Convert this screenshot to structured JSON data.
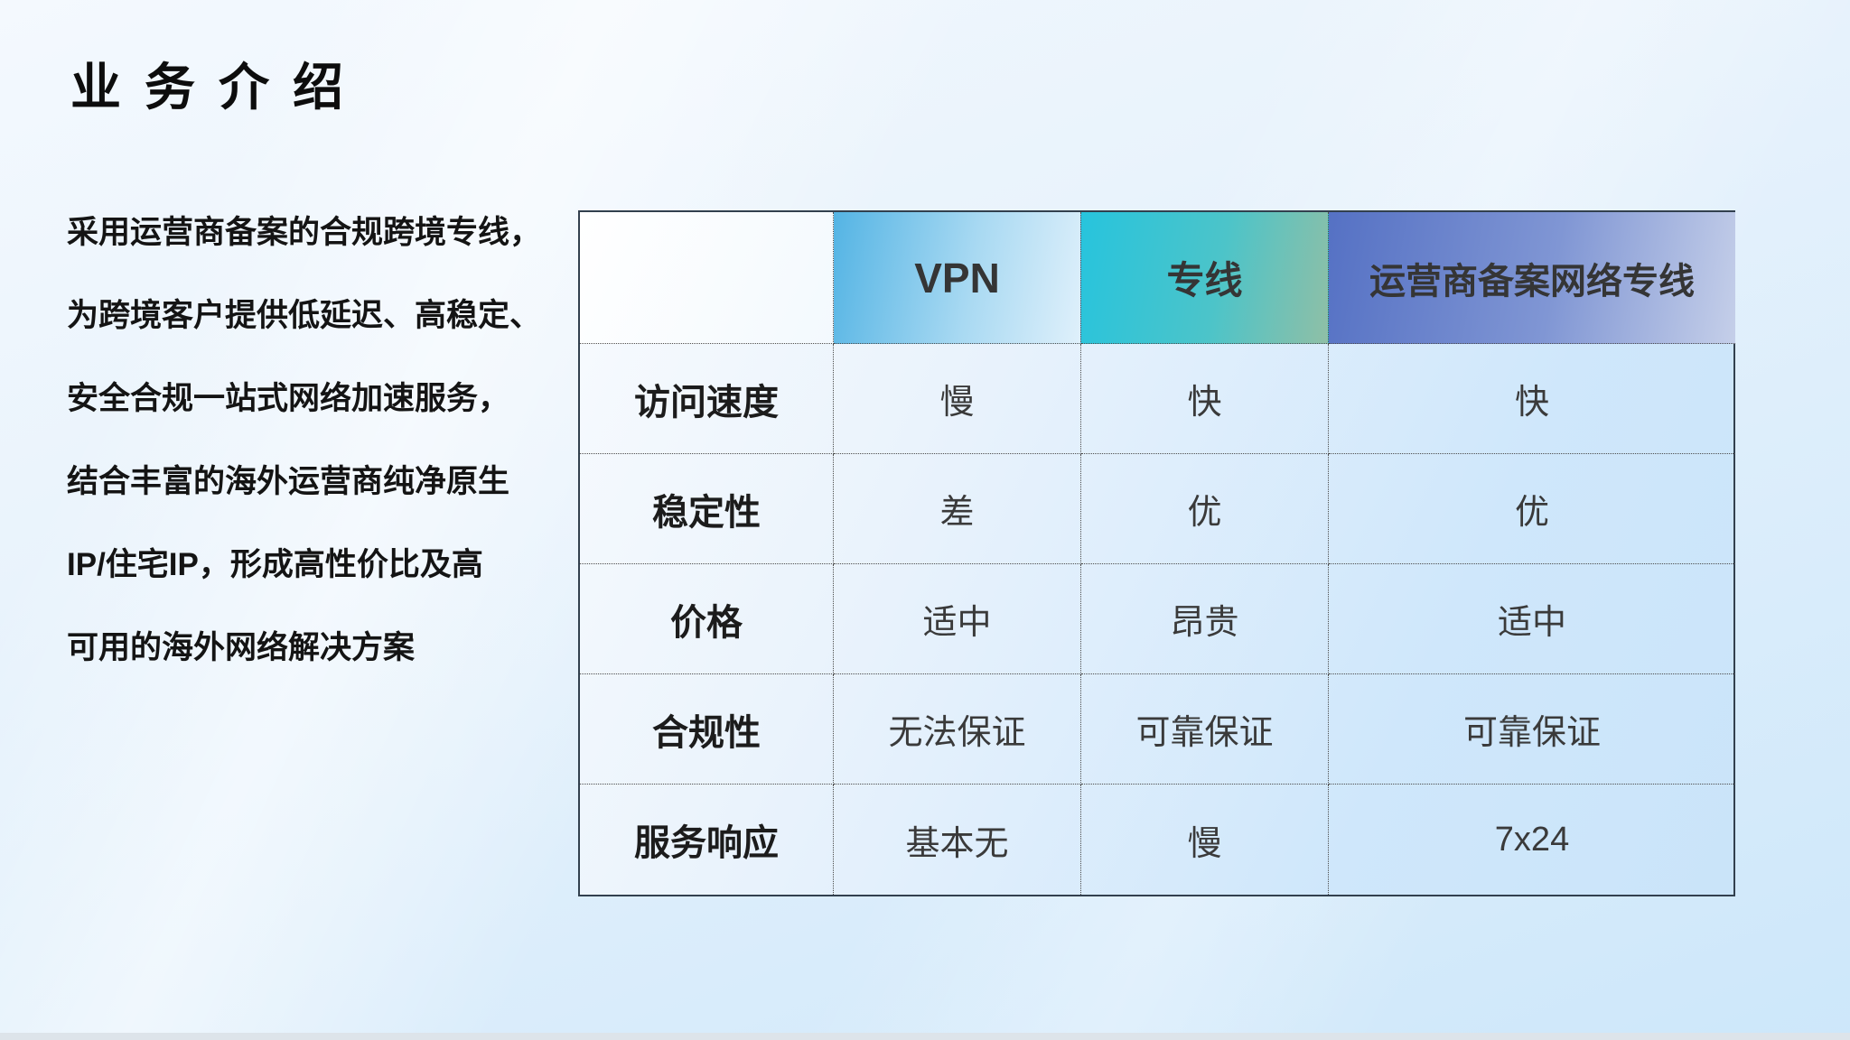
{
  "page": {
    "title": "业务介绍"
  },
  "intro": {
    "lines": [
      "采用运营商备案的合规跨境专线，",
      "为跨境客户提供低延迟、高稳定、",
      "安全合规一站式网络加速服务，",
      "结合丰富的海外运营商纯净原生",
      "IP/住宅IP，形成高性价比及高",
      "可用的海外网络解决方案"
    ]
  },
  "table": {
    "columns": [
      "",
      "VPN",
      "专线",
      "运营商备案网络专线"
    ],
    "rows": [
      {
        "label": "访问速度",
        "values": [
          "慢",
          "快",
          "快"
        ]
      },
      {
        "label": "稳定性",
        "values": [
          "差",
          "优",
          "优"
        ]
      },
      {
        "label": "价格",
        "values": [
          "适中",
          "昂贵",
          "适中"
        ]
      },
      {
        "label": "合规性",
        "values": [
          "无法保证",
          "可靠保证",
          "可靠保证"
        ]
      },
      {
        "label": "服务响应",
        "values": [
          "基本无",
          "慢",
          "7x24"
        ]
      }
    ]
  },
  "colors": {
    "vpn_header_start": "#54b4e4",
    "vpn_header_end": "#dff0fb",
    "dedicated_line_header_start": "#27c4dd",
    "dedicated_line_header_end": "#8fbfa6",
    "carrier_header_start": "#5571c4",
    "carrier_header_end": "#c5cfe9",
    "table_border": "#32404e",
    "slide_bg_top": "#f4f9fe",
    "slide_bg_bottom": "#cde7fa"
  }
}
